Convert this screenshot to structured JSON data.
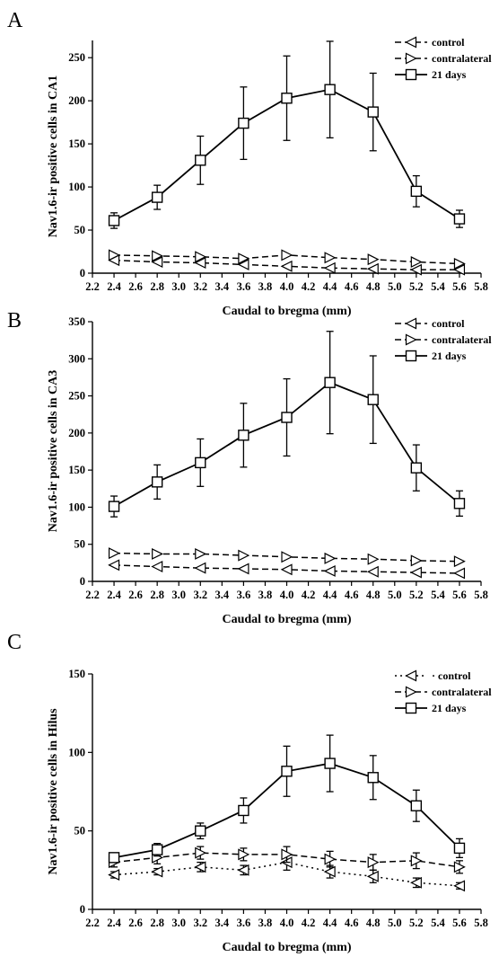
{
  "chart_data": [
    {
      "type": "line",
      "panel_label": "A",
      "xlabel": "Caudal to bregma (mm)",
      "ylabel": "Nav1.6-ir positive cells in CA1",
      "x_ticks": [
        "2.2",
        "2.4",
        "2.6",
        "2.8",
        "3.0",
        "3.2",
        "3.4",
        "3.6",
        "3.8",
        "4.0",
        "4.2",
        "4.4",
        "4.6",
        "4.8",
        "5.0",
        "5.2",
        "5.4",
        "5.6",
        "5.8"
      ],
      "y_ticks": [
        "0",
        "50",
        "100",
        "150",
        "200",
        "250"
      ],
      "xlim": [
        2.2,
        5.8
      ],
      "ylim": [
        0,
        270
      ],
      "x": [
        2.4,
        2.8,
        3.2,
        3.6,
        4.0,
        4.4,
        4.8,
        5.2,
        5.6
      ],
      "legend_position": "top-right",
      "series": [
        {
          "name": "control",
          "marker": "triangle-left",
          "line": "dashed",
          "values": [
            15,
            13,
            12,
            10,
            8,
            6,
            5,
            4,
            4
          ],
          "errors": [
            0,
            0,
            0,
            0,
            0,
            0,
            0,
            0,
            0
          ]
        },
        {
          "name": "contralateral",
          "marker": "triangle-right",
          "line": "dashed",
          "values": [
            21,
            20,
            19,
            17,
            21,
            18,
            16,
            13,
            11
          ],
          "errors": [
            0,
            0,
            0,
            0,
            0,
            0,
            0,
            0,
            0
          ]
        },
        {
          "name": "21 days",
          "marker": "square",
          "line": "solid",
          "values": [
            61,
            88,
            131,
            174,
            203,
            213,
            187,
            95,
            63
          ],
          "errors": [
            9,
            14,
            28,
            42,
            49,
            56,
            45,
            18,
            10
          ]
        }
      ]
    },
    {
      "type": "line",
      "panel_label": "B",
      "xlabel": "Caudal to bregma (mm)",
      "ylabel": "Nav1.6-ir positive cells in CA3",
      "x_ticks": [
        "2.2",
        "2.4",
        "2.6",
        "2.8",
        "3.0",
        "3.2",
        "3.4",
        "3.6",
        "3.8",
        "4.0",
        "4.2",
        "4.4",
        "4.6",
        "4.8",
        "5.0",
        "5.2",
        "5.4",
        "5.6",
        "5.8"
      ],
      "y_ticks": [
        "0",
        "50",
        "100",
        "150",
        "200",
        "250",
        "300",
        "350"
      ],
      "xlim": [
        2.2,
        5.8
      ],
      "ylim": [
        0,
        350
      ],
      "x": [
        2.4,
        2.8,
        3.2,
        3.6,
        4.0,
        4.4,
        4.8,
        5.2,
        5.6
      ],
      "legend_position": "top-right",
      "series": [
        {
          "name": "control",
          "marker": "triangle-left",
          "line": "dashed",
          "values": [
            22,
            20,
            18,
            17,
            16,
            14,
            13,
            12,
            11
          ],
          "errors": [
            0,
            0,
            0,
            0,
            0,
            0,
            0,
            0,
            0
          ]
        },
        {
          "name": "contralateral",
          "marker": "triangle-right",
          "line": "dashed",
          "values": [
            38,
            37,
            37,
            35,
            33,
            31,
            30,
            28,
            27
          ],
          "errors": [
            0,
            0,
            0,
            0,
            0,
            0,
            0,
            0,
            0
          ]
        },
        {
          "name": "21 days",
          "marker": "square",
          "line": "solid",
          "values": [
            101,
            134,
            160,
            197,
            221,
            268,
            245,
            153,
            105
          ],
          "errors": [
            14,
            23,
            32,
            43,
            52,
            69,
            59,
            31,
            17
          ]
        }
      ]
    },
    {
      "type": "line",
      "panel_label": "C",
      "xlabel": "Caudal to bregma (mm)",
      "ylabel": "Nav1.6-ir positive cells in Hilus",
      "x_ticks": [
        "2.2",
        "2.4",
        "2.6",
        "2.8",
        "3.0",
        "3.2",
        "3.4",
        "3.6",
        "3.8",
        "4.0",
        "4.2",
        "4.4",
        "4.6",
        "4.8",
        "5.0",
        "5.2",
        "5.4",
        "5.6",
        "5.8"
      ],
      "y_ticks": [
        "0",
        "50",
        "100",
        "150"
      ],
      "xlim": [
        2.2,
        5.8
      ],
      "ylim": [
        0,
        150
      ],
      "x": [
        2.4,
        2.8,
        3.2,
        3.6,
        4.0,
        4.4,
        4.8,
        5.2,
        5.6
      ],
      "legend_position": "top-right",
      "series": [
        {
          "name": "· control",
          "marker": "triangle-left",
          "line": "dotted",
          "values": [
            22,
            24,
            27,
            25,
            30,
            24,
            21,
            17,
            15
          ],
          "errors": [
            2,
            2,
            3,
            3,
            5,
            4,
            4,
            3,
            2
          ]
        },
        {
          "name": "contralateral",
          "marker": "triangle-right",
          "line": "dashed",
          "values": [
            30,
            33,
            36,
            35,
            35,
            32,
            30,
            31,
            27
          ],
          "errors": [
            3,
            4,
            4,
            4,
            5,
            5,
            5,
            5,
            4
          ]
        },
        {
          "name": "21 days",
          "marker": "square",
          "line": "solid",
          "values": [
            33,
            38,
            50,
            63,
            88,
            93,
            84,
            66,
            39
          ],
          "errors": [
            3,
            4,
            5,
            8,
            16,
            18,
            14,
            10,
            6
          ]
        }
      ]
    }
  ]
}
